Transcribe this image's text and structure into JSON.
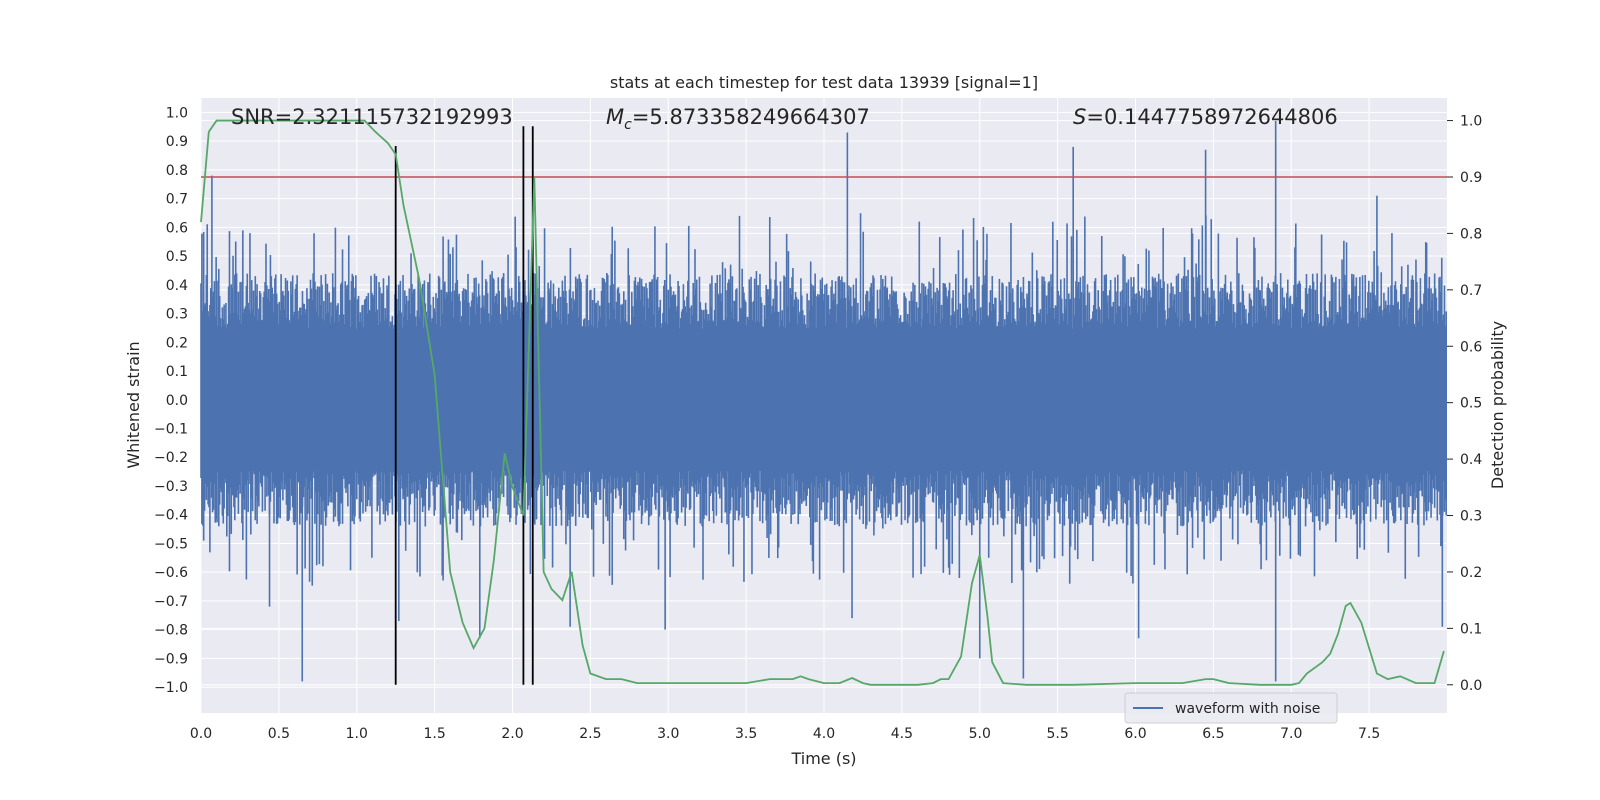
{
  "chart_data": {
    "type": "line",
    "title": "stats at each timestep for test data 13939 [signal=1]",
    "xlabel": "Time (s)",
    "ylabel_left": "Whitened strain",
    "ylabel_right": "Detection probability",
    "xlim": [
      0,
      8
    ],
    "ylim_left": [
      -1.09,
      1.05
    ],
    "ylim_right": [
      -0.05,
      1.04
    ],
    "x_ticks": [
      0.0,
      0.5,
      1.0,
      1.5,
      2.0,
      2.5,
      3.0,
      3.5,
      4.0,
      4.5,
      5.0,
      5.5,
      6.0,
      6.5,
      7.0,
      7.5
    ],
    "x_tick_labels": [
      "0.0",
      "0.5",
      "1.0",
      "1.5",
      "2.0",
      "2.5",
      "3.0",
      "3.5",
      "4.0",
      "4.5",
      "5.0",
      "5.5",
      "6.0",
      "6.5",
      "7.0",
      "7.5"
    ],
    "y_left_ticks": [
      1.0,
      0.9,
      0.8,
      0.7,
      0.6,
      0.5,
      0.4,
      0.3,
      0.2,
      0.1,
      0.0,
      -0.1,
      -0.2,
      -0.3,
      -0.4,
      -0.5,
      -0.6,
      -0.7,
      -0.8,
      -0.9,
      -1.0
    ],
    "y_left_tick_labels": [
      "1.0",
      "0.9",
      "0.8",
      "0.7",
      "0.6",
      "0.5",
      "0.4",
      "0.3",
      "0.2",
      "0.1",
      "0.0",
      "−0.1",
      "−0.2",
      "−0.3",
      "−0.4",
      "−0.5",
      "−0.6",
      "−0.7",
      "−0.8",
      "−0.9",
      "−1.0"
    ],
    "y_right_ticks": [
      1.0,
      0.9,
      0.8,
      0.7,
      0.6,
      0.5,
      0.4,
      0.3,
      0.2,
      0.1,
      0.0
    ],
    "y_right_tick_labels": [
      "1.0",
      "0.9",
      "0.8",
      "0.7",
      "0.6",
      "0.5",
      "0.4",
      "0.3",
      "0.2",
      "0.1",
      "0.0"
    ],
    "grid": true,
    "legend": {
      "location": "lower right",
      "entries": [
        "waveform with noise"
      ]
    },
    "annotations": {
      "snr": "SNR=2.321115732192993",
      "mc_symbol": "M",
      "mc_sub": "c",
      "mc_value": "=5.873358249664307",
      "s_symbol": "S",
      "s_value": "=0.1447758972644806"
    },
    "threshold_right": 0.9,
    "vertical_lines_x": [
      1.25,
      2.07,
      2.13
    ],
    "waveform": {
      "name": "waveform with noise",
      "color": "#4c72b0",
      "envelope_typical": 0.38,
      "spikes": [
        {
          "x": 0.07,
          "y": 0.78
        },
        {
          "x": 0.65,
          "y": -0.98
        },
        {
          "x": 0.44,
          "y": -0.72
        },
        {
          "x": 1.25,
          "y": 0.72
        },
        {
          "x": 1.27,
          "y": -0.77
        },
        {
          "x": 1.79,
          "y": -0.83
        },
        {
          "x": 2.37,
          "y": -0.79
        },
        {
          "x": 2.98,
          "y": -0.8
        },
        {
          "x": 4.15,
          "y": 0.93
        },
        {
          "x": 4.18,
          "y": -0.76
        },
        {
          "x": 5.0,
          "y": -0.9
        },
        {
          "x": 5.28,
          "y": -0.97
        },
        {
          "x": 5.6,
          "y": 0.88
        },
        {
          "x": 6.02,
          "y": -0.83
        },
        {
          "x": 6.45,
          "y": 0.87
        },
        {
          "x": 6.9,
          "y": 0.97
        },
        {
          "x": 6.9,
          "y": -0.98
        },
        {
          "x": 7.55,
          "y": 0.71
        },
        {
          "x": 7.97,
          "y": -0.79
        }
      ]
    },
    "detection_probability": {
      "color": "#55a868",
      "x": [
        0.0,
        0.05,
        0.1,
        0.2,
        0.3,
        0.4,
        0.5,
        0.6,
        0.7,
        0.8,
        0.9,
        1.0,
        1.05,
        1.12,
        1.2,
        1.25,
        1.3,
        1.4,
        1.5,
        1.6,
        1.68,
        1.75,
        1.82,
        1.88,
        1.95,
        2.0,
        2.07,
        2.14,
        2.2,
        2.25,
        2.32,
        2.38,
        2.45,
        2.5,
        2.6,
        2.7,
        2.8,
        3.0,
        3.2,
        3.5,
        3.65,
        3.8,
        3.85,
        3.9,
        4.0,
        4.1,
        4.18,
        4.25,
        4.3,
        4.4,
        4.6,
        4.7,
        4.75,
        4.8,
        4.88,
        4.95,
        5.0,
        5.05,
        5.08,
        5.15,
        5.3,
        5.6,
        6.0,
        6.3,
        6.45,
        6.5,
        6.6,
        6.8,
        6.95,
        7.0,
        7.05,
        7.1,
        7.2,
        7.25,
        7.3,
        7.35,
        7.38,
        7.45,
        7.5,
        7.55,
        7.62,
        7.7,
        7.8,
        7.88,
        7.92,
        7.98
      ],
      "y": [
        0.82,
        0.98,
        1.0,
        1.0,
        1.0,
        1.0,
        1.0,
        1.0,
        1.0,
        1.0,
        1.0,
        1.0,
        1.0,
        0.98,
        0.96,
        0.94,
        0.85,
        0.72,
        0.55,
        0.2,
        0.11,
        0.065,
        0.1,
        0.22,
        0.41,
        0.35,
        0.3,
        0.9,
        0.2,
        0.17,
        0.15,
        0.2,
        0.07,
        0.02,
        0.01,
        0.01,
        0.003,
        0.003,
        0.003,
        0.003,
        0.01,
        0.01,
        0.015,
        0.01,
        0.003,
        0.003,
        0.012,
        0.003,
        0.0,
        0.0,
        0.0,
        0.003,
        0.01,
        0.01,
        0.05,
        0.18,
        0.23,
        0.12,
        0.04,
        0.003,
        0.0,
        0.0,
        0.003,
        0.003,
        0.01,
        0.01,
        0.003,
        0.0,
        0.0,
        0.0,
        0.003,
        0.02,
        0.04,
        0.055,
        0.09,
        0.14,
        0.145,
        0.11,
        0.065,
        0.02,
        0.01,
        0.015,
        0.003,
        0.003,
        0.003,
        0.06
      ]
    }
  }
}
